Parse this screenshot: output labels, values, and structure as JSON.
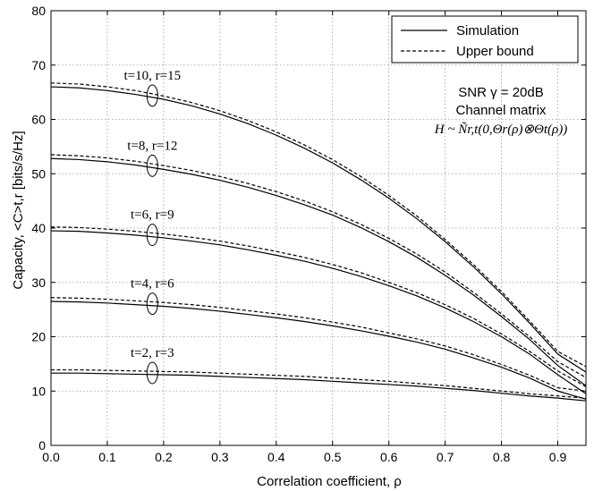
{
  "chart_data": {
    "type": "line",
    "xlabel": "Correlation coefficient, ρ",
    "ylabel": "Capacity, <C>t,r  [bits/s/Hz]",
    "xlim": [
      0,
      0.95
    ],
    "ylim": [
      0,
      80
    ],
    "xticks": [
      0,
      0.1,
      0.2,
      0.3,
      0.4,
      0.5,
      0.6,
      0.7,
      0.8,
      0.9
    ],
    "yticks": [
      0,
      10,
      20,
      30,
      40,
      50,
      60,
      70,
      80
    ],
    "xtick_labels": [
      "0.0",
      "0.1",
      "0.2",
      "0.3",
      "0.4",
      "0.5",
      "0.6",
      "0.7",
      "0.8",
      "0.9"
    ],
    "ytick_labels": [
      "0",
      "10",
      "20",
      "30",
      "40",
      "50",
      "60",
      "70",
      "80"
    ],
    "grid": true,
    "legend_position": "top-right",
    "legend": [
      {
        "label": "Simulation",
        "style": "solid"
      },
      {
        "label": "Upper bound",
        "style": "dashed"
      }
    ],
    "annotations": {
      "snr": "SNR γ = 20dB",
      "channel": "Channel matrix",
      "formula": "H ~ Ñr,t(0,Θr(ρ)⊗Θt(ρ))"
    },
    "x": [
      0.0,
      0.05,
      0.1,
      0.15,
      0.2,
      0.25,
      0.3,
      0.35,
      0.4,
      0.45,
      0.5,
      0.55,
      0.6,
      0.65,
      0.7,
      0.75,
      0.8,
      0.85,
      0.9,
      0.95
    ],
    "groups": [
      {
        "label": "t=10, r=15",
        "label_x": 0.18,
        "simulation": [
          66.0,
          65.8,
          65.3,
          64.6,
          63.7,
          62.5,
          61.0,
          59.2,
          57.1,
          54.7,
          52.0,
          48.9,
          45.5,
          41.7,
          37.5,
          32.9,
          27.9,
          22.5,
          16.8,
          13.5
        ],
        "upper_bound": [
          66.7,
          66.5,
          66.0,
          65.3,
          64.3,
          63.1,
          61.6,
          59.8,
          57.7,
          55.3,
          52.6,
          49.5,
          46.0,
          42.2,
          37.9,
          33.3,
          28.3,
          22.9,
          17.3,
          14.5
        ]
      },
      {
        "label": "t=8, r=12",
        "label_x": 0.18,
        "simulation": [
          52.8,
          52.6,
          52.2,
          51.6,
          50.8,
          49.9,
          48.8,
          47.5,
          46.0,
          44.3,
          42.4,
          40.1,
          37.5,
          34.6,
          31.3,
          27.7,
          23.7,
          19.5,
          14.7,
          11.0
        ],
        "upper_bound": [
          53.5,
          53.3,
          52.9,
          52.3,
          51.5,
          50.6,
          49.5,
          48.2,
          46.7,
          45.0,
          43.0,
          40.7,
          38.1,
          35.2,
          31.9,
          28.2,
          24.2,
          20.0,
          15.4,
          12.5
        ]
      },
      {
        "label": "t=6, r=9",
        "label_x": 0.18,
        "simulation": [
          39.5,
          39.4,
          39.1,
          38.7,
          38.2,
          37.6,
          36.9,
          36.0,
          35.0,
          33.9,
          32.6,
          31.1,
          29.4,
          27.5,
          25.3,
          22.8,
          20.0,
          16.8,
          13.0,
          9.5
        ],
        "upper_bound": [
          40.2,
          40.1,
          39.8,
          39.4,
          38.9,
          38.3,
          37.6,
          36.7,
          35.7,
          34.6,
          33.3,
          31.8,
          30.0,
          28.1,
          25.9,
          23.4,
          20.5,
          17.3,
          13.7,
          10.8
        ]
      },
      {
        "label": "t=4, r=6",
        "label_x": 0.18,
        "simulation": [
          26.5,
          26.4,
          26.2,
          25.9,
          25.6,
          25.2,
          24.7,
          24.1,
          23.5,
          22.8,
          22.0,
          21.1,
          20.1,
          19.0,
          17.7,
          16.1,
          14.4,
          12.4,
          10.0,
          8.5
        ],
        "upper_bound": [
          27.2,
          27.1,
          26.9,
          26.6,
          26.3,
          25.9,
          25.4,
          24.8,
          24.2,
          23.5,
          22.7,
          21.8,
          20.7,
          19.6,
          18.3,
          16.7,
          14.9,
          12.9,
          10.6,
          10.0
        ]
      },
      {
        "label": "t=2, r=3",
        "label_x": 0.18,
        "simulation": [
          13.3,
          13.3,
          13.2,
          13.1,
          13.0,
          12.9,
          12.7,
          12.5,
          12.3,
          12.1,
          11.8,
          11.5,
          11.2,
          10.9,
          10.5,
          10.1,
          9.6,
          9.1,
          8.7,
          8.2
        ],
        "upper_bound": [
          13.9,
          13.9,
          13.8,
          13.7,
          13.6,
          13.5,
          13.3,
          13.1,
          12.9,
          12.7,
          12.4,
          12.1,
          11.8,
          11.4,
          11.0,
          10.5,
          10.0,
          9.5,
          9.1,
          8.7
        ]
      }
    ]
  }
}
